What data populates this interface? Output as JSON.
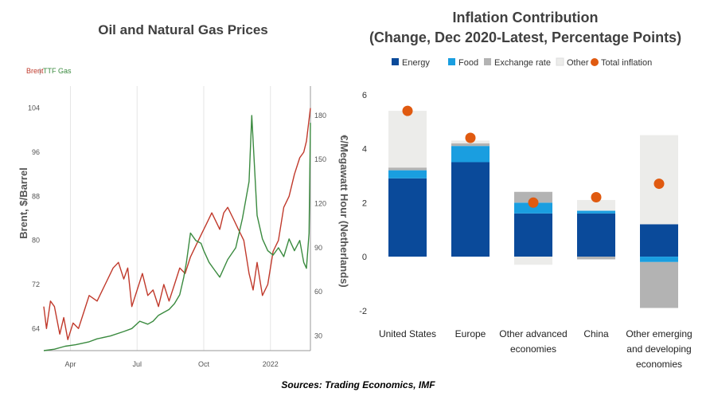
{
  "left": {
    "title": "Oil and Natural Gas Prices",
    "legend_brent": "Brent",
    "legend_sep": "|",
    "legend_ttf": "TTF Gas"
  },
  "right": {
    "title_line1": "Inflation Contribution",
    "title_line2": "(Change, Dec 2020-Latest, Percentage Points)"
  },
  "source": "Sources: Trading Economics, IMF",
  "chart_data": [
    {
      "type": "line",
      "title": "Oil and Natural Gas Prices",
      "xlabel": "",
      "ylabel": "Brent, $/Barrel",
      "y2label": "€/Megawatt Hour (Netherlands)",
      "x_ticks": [
        "Apr",
        "Jul",
        "Oct",
        "2022"
      ],
      "x_range": [
        0,
        1
      ],
      "ylim": [
        60,
        108
      ],
      "y2lim": [
        20,
        200
      ],
      "yticks": [
        64,
        72,
        80,
        88,
        96,
        104
      ],
      "y2ticks": [
        30,
        60,
        90,
        120,
        150,
        180
      ],
      "grid": "vertical",
      "colors": {
        "brent": "#c0392b",
        "ttf": "#3a8a3f"
      },
      "series": [
        {
          "name": "Brent",
          "axis": "left",
          "x": [
            0,
            0.01,
            0.025,
            0.04,
            0.06,
            0.075,
            0.09,
            0.11,
            0.13,
            0.15,
            0.17,
            0.2,
            0.23,
            0.26,
            0.28,
            0.3,
            0.315,
            0.33,
            0.35,
            0.37,
            0.39,
            0.41,
            0.43,
            0.45,
            0.47,
            0.49,
            0.51,
            0.53,
            0.55,
            0.57,
            0.59,
            0.61,
            0.63,
            0.65,
            0.66,
            0.675,
            0.69,
            0.71,
            0.73,
            0.75,
            0.77,
            0.785,
            0.8,
            0.82,
            0.84,
            0.86,
            0.88,
            0.9,
            0.92,
            0.94,
            0.96,
            0.975,
            0.985,
            1.0
          ],
          "values": [
            68,
            64,
            69,
            68,
            63,
            66,
            62,
            65,
            64,
            67,
            70,
            69,
            72,
            75,
            76,
            73,
            75,
            68,
            71,
            74,
            70,
            71,
            68,
            72,
            69,
            72,
            75,
            74,
            77,
            79,
            81,
            83,
            85,
            83,
            82,
            85,
            86,
            84,
            82,
            80,
            74,
            71,
            76,
            70,
            72,
            78,
            80,
            86,
            88,
            92,
            95,
            96,
            98,
            104
          ]
        },
        {
          "name": "TTF Gas",
          "axis": "right",
          "x": [
            0,
            0.04,
            0.08,
            0.12,
            0.17,
            0.2,
            0.25,
            0.3,
            0.33,
            0.36,
            0.39,
            0.41,
            0.43,
            0.45,
            0.47,
            0.49,
            0.51,
            0.525,
            0.535,
            0.55,
            0.57,
            0.59,
            0.6,
            0.62,
            0.64,
            0.66,
            0.69,
            0.72,
            0.745,
            0.76,
            0.77,
            0.78,
            0.8,
            0.82,
            0.84,
            0.86,
            0.88,
            0.9,
            0.92,
            0.94,
            0.96,
            0.975,
            0.985,
            0.995,
            1.0
          ],
          "values": [
            20,
            21,
            23,
            24,
            26,
            28,
            30,
            33,
            35,
            40,
            38,
            40,
            44,
            46,
            48,
            52,
            58,
            70,
            80,
            100,
            95,
            93,
            88,
            80,
            75,
            70,
            82,
            90,
            110,
            125,
            135,
            180,
            112,
            96,
            88,
            85,
            90,
            84,
            96,
            88,
            95,
            80,
            76,
            100,
            175
          ]
        }
      ]
    },
    {
      "type": "bar",
      "stacked": true,
      "title": "Inflation Contribution (Change, Dec 2020-Latest, Percentage Points)",
      "xlabel": "",
      "ylabel": "",
      "categories": [
        "United States",
        "Europe",
        "Other advanced economies",
        "China",
        "Other emerging and developing economies"
      ],
      "category_lines": [
        [
          "United States"
        ],
        [
          "Europe"
        ],
        [
          "Other advanced",
          "economies"
        ],
        [
          "China"
        ],
        [
          "Other emerging",
          "and developing",
          "economies"
        ]
      ],
      "ylim": [
        -2.3,
        6.2
      ],
      "yticks": [
        -2,
        0,
        2,
        4,
        6
      ],
      "legend": "top",
      "series": [
        {
          "name": "Energy",
          "color": "#0a4a9a",
          "values": [
            2.9,
            3.5,
            1.6,
            1.6,
            1.2
          ]
        },
        {
          "name": "Food",
          "color": "#1a9ee0",
          "values": [
            0.3,
            0.6,
            0.4,
            0.1,
            -0.2
          ]
        },
        {
          "name": "Exchange rate",
          "color": "#b3b3b3",
          "values": [
            0.1,
            0.1,
            0.4,
            -0.1,
            -1.7
          ]
        },
        {
          "name": "Other",
          "color": "#ececea",
          "values": [
            2.1,
            0.1,
            -0.3,
            0.4,
            3.3
          ]
        }
      ],
      "total_inflation": {
        "name": "Total inflation",
        "color": "#e05a10",
        "values": [
          5.4,
          4.4,
          2.0,
          2.2,
          2.7
        ]
      }
    }
  ]
}
